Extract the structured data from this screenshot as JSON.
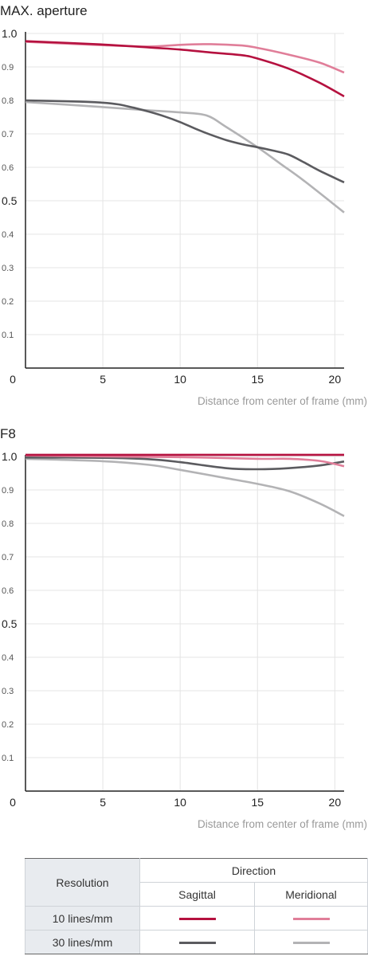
{
  "colors": {
    "sag10": "#b5113f",
    "mer10": "#e07e99",
    "sag30": "#5b5b5f",
    "mer30": "#b3b3b5",
    "grid": "#e4e4e4",
    "axis": "#222222"
  },
  "chart_data": [
    {
      "type": "line",
      "title": "MAX. aperture",
      "xlabel": "Distance from center of frame (mm)",
      "xlim": [
        0,
        20.6
      ],
      "ylim": [
        0,
        1.0
      ],
      "xticks": [
        "0",
        "5",
        "10",
        "15",
        "20"
      ],
      "yticks": [
        "0.1",
        "0.2",
        "0.3",
        "0.4",
        "0.5",
        "0.6",
        "0.7",
        "0.8",
        "0.9",
        "1.0"
      ],
      "grid": true,
      "series": [
        {
          "key": "mer30",
          "x": [
            0,
            5,
            8,
            10,
            11.7,
            13,
            15,
            16.5,
            18,
            20.6
          ],
          "y": [
            0.795,
            0.78,
            0.77,
            0.764,
            0.755,
            0.72,
            0.66,
            0.61,
            0.56,
            0.465
          ]
        },
        {
          "key": "sag30",
          "x": [
            0,
            3,
            5,
            6,
            7,
            8,
            9,
            10,
            11,
            12,
            13,
            14,
            15,
            16,
            17,
            18,
            19,
            20.6
          ],
          "y": [
            0.8,
            0.797,
            0.793,
            0.788,
            0.778,
            0.766,
            0.752,
            0.735,
            0.715,
            0.697,
            0.681,
            0.669,
            0.66,
            0.65,
            0.638,
            0.615,
            0.59,
            0.555
          ]
        },
        {
          "key": "mer10",
          "x": [
            0,
            5,
            8,
            10,
            12,
            14,
            15,
            17,
            19,
            20.6
          ],
          "y": [
            0.975,
            0.965,
            0.961,
            0.966,
            0.968,
            0.964,
            0.957,
            0.937,
            0.913,
            0.883
          ]
        },
        {
          "key": "sag10",
          "x": [
            0,
            5,
            8,
            10,
            12,
            14,
            15,
            17,
            19,
            20.6
          ],
          "y": [
            0.977,
            0.967,
            0.958,
            0.952,
            0.943,
            0.935,
            0.925,
            0.895,
            0.853,
            0.812
          ]
        }
      ]
    },
    {
      "type": "line",
      "title": "F8",
      "xlabel": "Distance from center of frame (mm)",
      "xlim": [
        0,
        20.6
      ],
      "ylim": [
        0,
        1.0
      ],
      "xticks": [
        "0",
        "5",
        "10",
        "15",
        "20"
      ],
      "yticks": [
        "0.1",
        "0.2",
        "0.3",
        "0.4",
        "0.5",
        "0.6",
        "0.7",
        "0.8",
        "0.9",
        "1.0"
      ],
      "grid": true,
      "series": [
        {
          "key": "mer30",
          "x": [
            0,
            5,
            8,
            10,
            13,
            15,
            17,
            19,
            20.6
          ],
          "y": [
            0.993,
            0.986,
            0.975,
            0.96,
            0.935,
            0.918,
            0.897,
            0.86,
            0.822
          ]
        },
        {
          "key": "sag30",
          "x": [
            0,
            5,
            8,
            10,
            13,
            15,
            17,
            19,
            20.6
          ],
          "y": [
            0.997,
            0.996,
            0.992,
            0.983,
            0.965,
            0.962,
            0.965,
            0.973,
            0.985
          ]
        },
        {
          "key": "mer10",
          "x": [
            0,
            5,
            10,
            15,
            17,
            19,
            20.6
          ],
          "y": [
            1.003,
            1.0,
            0.998,
            0.993,
            0.993,
            0.987,
            0.971
          ]
        },
        {
          "key": "sag10",
          "x": [
            0,
            5,
            10,
            15,
            20.6
          ],
          "y": [
            1.005,
            1.005,
            1.005,
            1.005,
            1.005
          ]
        }
      ]
    }
  ],
  "legend": {
    "resolution_header": "Resolution",
    "direction_header": "Direction",
    "sagittal": "Sagittal",
    "meridional": "Meridional",
    "row1": "10 lines/mm",
    "row2": "30 lines/mm"
  }
}
